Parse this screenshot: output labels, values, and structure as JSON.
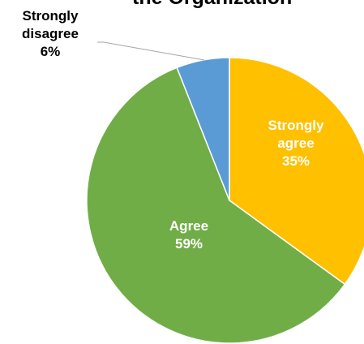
{
  "chart_data": {
    "type": "pie",
    "title": "the Organization",
    "slices": [
      {
        "label": "Strongly agree",
        "value": 35,
        "value_label": "35%",
        "color": "#FFC000",
        "label_color": "#FFFFFF"
      },
      {
        "label": "Agree",
        "value": 59,
        "value_label": "59%",
        "color": "#70AD47",
        "label_color": "#FFFFFF"
      },
      {
        "label": "Strongly disagree",
        "value": 6,
        "value_label": "6%",
        "color": "#5B9BD5",
        "label_color": "#000000"
      }
    ],
    "legend": "none",
    "start_angle": "12 o'clock",
    "direction": "clockwise"
  }
}
